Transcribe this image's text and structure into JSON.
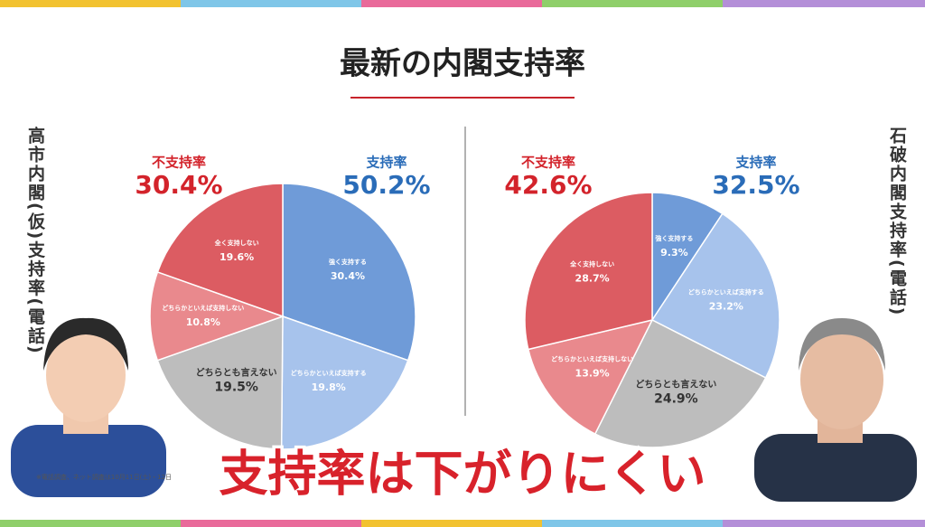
{
  "title": "最新の内閣支持率",
  "caption": "支持率は下がりにくい",
  "footnote": "※電話調査、ネット調査は10月11日(土)・12日",
  "chart_data": [
    {
      "type": "pie",
      "title": "高市内閣(仮)支持率(電話)",
      "categories": [
        "強く支持する",
        "どちらかといえば支持する",
        "どちらとも言えない",
        "どちらかといえば支持しない",
        "全く支持しない"
      ],
      "values": [
        30.4,
        19.8,
        19.5,
        10.8,
        19.6
      ],
      "value_labels": [
        "30.4%",
        "19.8%",
        "19.5%",
        "10.8%",
        "19.6%"
      ],
      "colors": [
        "#6f9bd8",
        "#a7c3ec",
        "#bdbdbd",
        "#e9898d",
        "#dc5c62"
      ],
      "groups": [
        {
          "name": "支持率",
          "value": 50.2,
          "value_label": "50.2%",
          "color": "#2a6cb8"
        },
        {
          "name": "不支持率",
          "value": 30.4,
          "value_label": "30.4%",
          "color": "#d3232b"
        }
      ]
    },
    {
      "type": "pie",
      "title": "石破内閣支持率(電話)",
      "categories": [
        "強く支持する",
        "どちらかといえば支持する",
        "どちらとも言えない",
        "どちらかといえば支持しない",
        "全く支持しない"
      ],
      "values": [
        9.3,
        23.2,
        24.9,
        13.9,
        28.7
      ],
      "value_labels": [
        "9.3%",
        "23.2%",
        "24.9%",
        "13.9%",
        "28.7%"
      ],
      "colors": [
        "#6f9bd8",
        "#a7c3ec",
        "#bdbdbd",
        "#e9898d",
        "#dc5c62"
      ],
      "groups": [
        {
          "name": "支持率",
          "value": 32.5,
          "value_label": "32.5%",
          "color": "#2a6cb8"
        },
        {
          "name": "不支持率",
          "value": 42.6,
          "value_label": "42.6%",
          "color": "#d3232b"
        }
      ]
    }
  ]
}
